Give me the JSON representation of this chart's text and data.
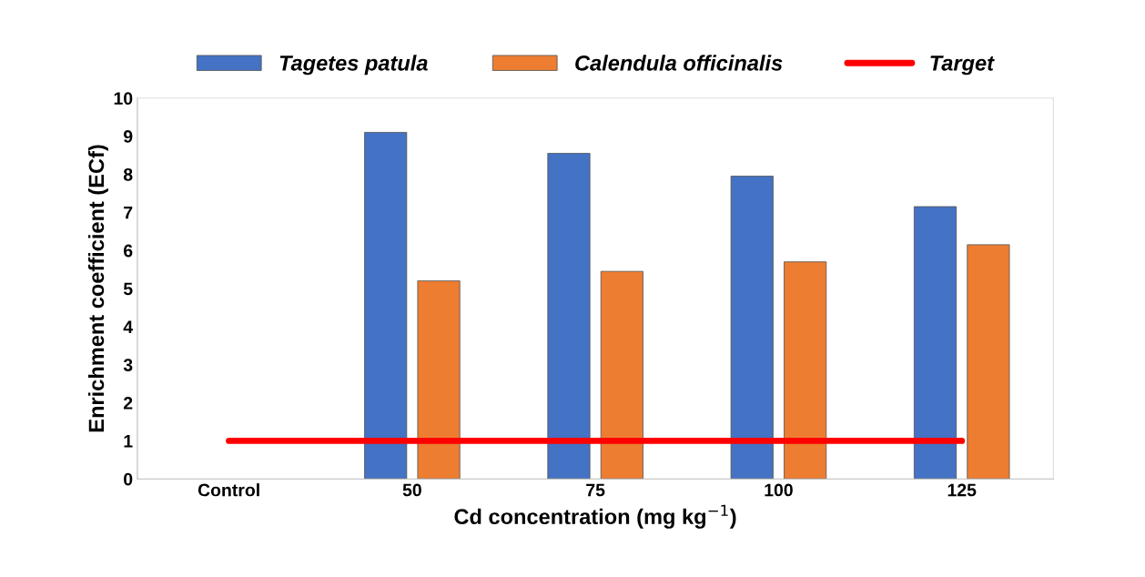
{
  "chart_data": {
    "type": "bar",
    "xlabel": "Cd concentration (mg kg$^{−1}$)",
    "ylabel": "Enrichment coefficient (ECf)",
    "categories": [
      "Control",
      "50",
      "75",
      "100",
      "125"
    ],
    "series": [
      {
        "name": "Tagetes patula",
        "color": "#4472c4",
        "values": [
          null,
          9.1,
          8.55,
          7.95,
          7.15
        ]
      },
      {
        "name": "Calendula officinalis",
        "color": "#ed7d31",
        "values": [
          null,
          5.2,
          5.45,
          5.7,
          6.15
        ]
      },
      {
        "name": "Target",
        "type": "line",
        "color": "#ff0000",
        "values": [
          1,
          1,
          1,
          1,
          1
        ]
      }
    ],
    "ylim": [
      0,
      10
    ],
    "yticks": [
      0,
      1,
      2,
      3,
      4,
      5,
      6,
      7,
      8,
      9,
      10
    ],
    "grid": false,
    "legend": "top"
  }
}
